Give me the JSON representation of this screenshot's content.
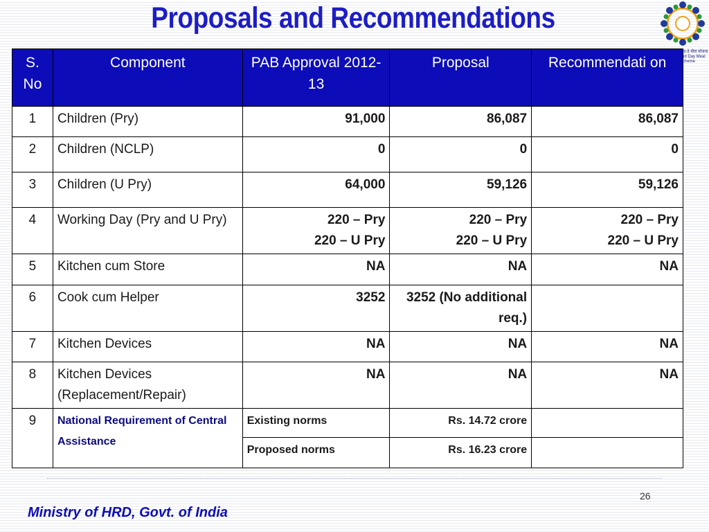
{
  "slide": {
    "title": "Proposals and Recommendations",
    "page_number": "26",
    "footer": "Ministry of HRD, Govt. of India",
    "logo": {
      "name": "mid-day-meal-logo",
      "caption_line1": "मिड-डे मील योजना",
      "caption_line2": "Mid Day Meal Scheme"
    }
  },
  "table": {
    "headers": {
      "sno": "S. No",
      "component": "Component",
      "pab": "PAB Approval 2012-13",
      "proposal": "Proposal",
      "recommendation": "Recommendati on"
    },
    "rows": [
      {
        "sno": "1",
        "component": "Children (Pry)",
        "pab": "91,000",
        "proposal": "86,087",
        "recommendation": "86,087"
      },
      {
        "sno": "2",
        "component": "Children (NCLP)",
        "pab": "0",
        "proposal": "0",
        "recommendation": "0"
      },
      {
        "sno": "3",
        "component": "Children (U Pry)",
        "pab": "64,000",
        "proposal": "59,126",
        "recommendation": "59,126"
      },
      {
        "sno": "4",
        "component": "Working Day (Pry and U Pry)",
        "pab": [
          "220 – Pry",
          "220 – U Pry"
        ],
        "proposal": [
          "220 – Pry",
          "220 – U Pry"
        ],
        "recommendation": [
          "220 – Pry",
          "220 – U Pry"
        ]
      },
      {
        "sno": "5",
        "component": "Kitchen cum Store",
        "pab": "NA",
        "proposal": "NA",
        "recommendation": "NA"
      },
      {
        "sno": "6",
        "component": "Cook cum Helper",
        "pab": "3252",
        "proposal": "3252 (No additional req.)",
        "recommendation": ""
      },
      {
        "sno": "7",
        "component": "Kitchen Devices",
        "pab": "NA",
        "proposal": "NA",
        "recommendation": "NA"
      },
      {
        "sno": "8",
        "component": "Kitchen Devices (Replacement/Repair)",
        "pab": "NA",
        "proposal": "NA",
        "recommendation": "NA"
      },
      {
        "sno": "9",
        "component": "National Requirement of Central Assistance",
        "sub_rows": [
          {
            "label": "Existing norms",
            "value": "Rs. 14.72 crore",
            "recommendation": ""
          },
          {
            "label": "Proposed norms",
            "value": "Rs. 16.23 crore",
            "recommendation": ""
          }
        ]
      }
    ]
  }
}
